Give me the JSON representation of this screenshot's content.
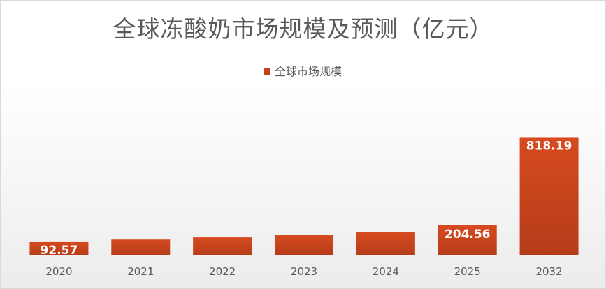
{
  "chart_data": {
    "type": "bar",
    "title": "全球冻酸奶市场规模及预测（亿元）",
    "categories": [
      "2020",
      "2021",
      "2022",
      "2023",
      "2024",
      "2025",
      "2032"
    ],
    "series": [
      {
        "name": "全球市场规模",
        "values": [
          92.57,
          105.8,
          120.9,
          138.2,
          158.0,
          204.56,
          818.19
        ],
        "data_labels": [
          "92.57",
          "",
          "",
          "",
          "",
          "204.56",
          "818.19"
        ]
      }
    ],
    "ylim": [
      0,
      1000
    ],
    "grid": false,
    "legend": "top-center",
    "bar_color": "#c8401c"
  }
}
